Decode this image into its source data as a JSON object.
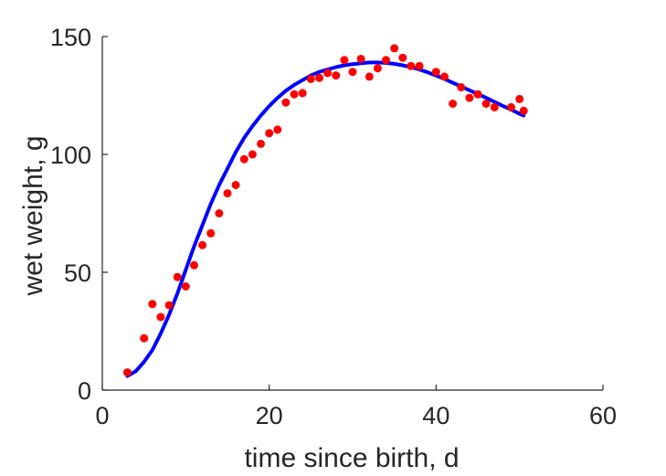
{
  "chart_data": {
    "type": "scatter",
    "xlabel": "time since birth, d",
    "ylabel": "wet weight, g",
    "xlim": [
      0,
      60
    ],
    "ylim": [
      0,
      150
    ],
    "xticks": [
      0,
      20,
      40,
      60
    ],
    "yticks": [
      0,
      50,
      100,
      150
    ],
    "grid": false,
    "legend": "none",
    "series": [
      {
        "kind": "scatter",
        "color": "#ff0000",
        "x": [
          3,
          5,
          6,
          7,
          8,
          9,
          10,
          11,
          12,
          13,
          14,
          15,
          16,
          17,
          18,
          19,
          20,
          21,
          22,
          23,
          24,
          25,
          26,
          27,
          28,
          29,
          30,
          31,
          32,
          33,
          34,
          35,
          36,
          37,
          38,
          40,
          41,
          42,
          43,
          44,
          45,
          46,
          47,
          49,
          50,
          50.5
        ],
        "y": [
          7.5,
          22,
          36.5,
          31,
          36,
          48,
          44,
          53,
          61.5,
          66.5,
          75,
          83.5,
          87,
          98,
          100,
          104.5,
          109,
          110.5,
          122,
          125.5,
          126,
          132,
          132.5,
          134.5,
          133.5,
          140,
          135,
          140.5,
          133,
          136.5,
          140,
          145,
          141,
          137.5,
          137.5,
          135,
          133,
          121.5,
          128.5,
          124,
          125.5,
          121.5,
          120,
          120,
          123.5,
          118.5
        ]
      },
      {
        "kind": "line",
        "color": "#0000ff",
        "x": [
          3,
          4,
          5,
          6,
          7,
          8,
          9,
          10,
          11,
          12,
          13,
          14,
          15,
          16,
          17,
          18,
          19,
          20,
          21,
          22,
          23,
          24,
          25,
          26,
          27,
          28,
          29,
          30,
          31,
          32,
          33,
          34,
          35,
          36,
          37,
          38,
          39,
          40,
          41,
          42,
          43,
          44,
          45,
          46,
          47,
          48,
          49,
          50,
          50.5
        ],
        "y": [
          6,
          8,
          12,
          17,
          24,
          32,
          41,
          51,
          61,
          70,
          79,
          87,
          94,
          101,
          107,
          112,
          116.5,
          120.5,
          124,
          127,
          129.5,
          131.5,
          133.5,
          135,
          136,
          137,
          137.8,
          138.3,
          138.7,
          139,
          139,
          138.8,
          138.4,
          137.8,
          137,
          136,
          134.8,
          133.5,
          132,
          130.4,
          128.8,
          127.2,
          125.6,
          124,
          122.3,
          120.6,
          119,
          117.2,
          116.5
        ]
      }
    ]
  }
}
